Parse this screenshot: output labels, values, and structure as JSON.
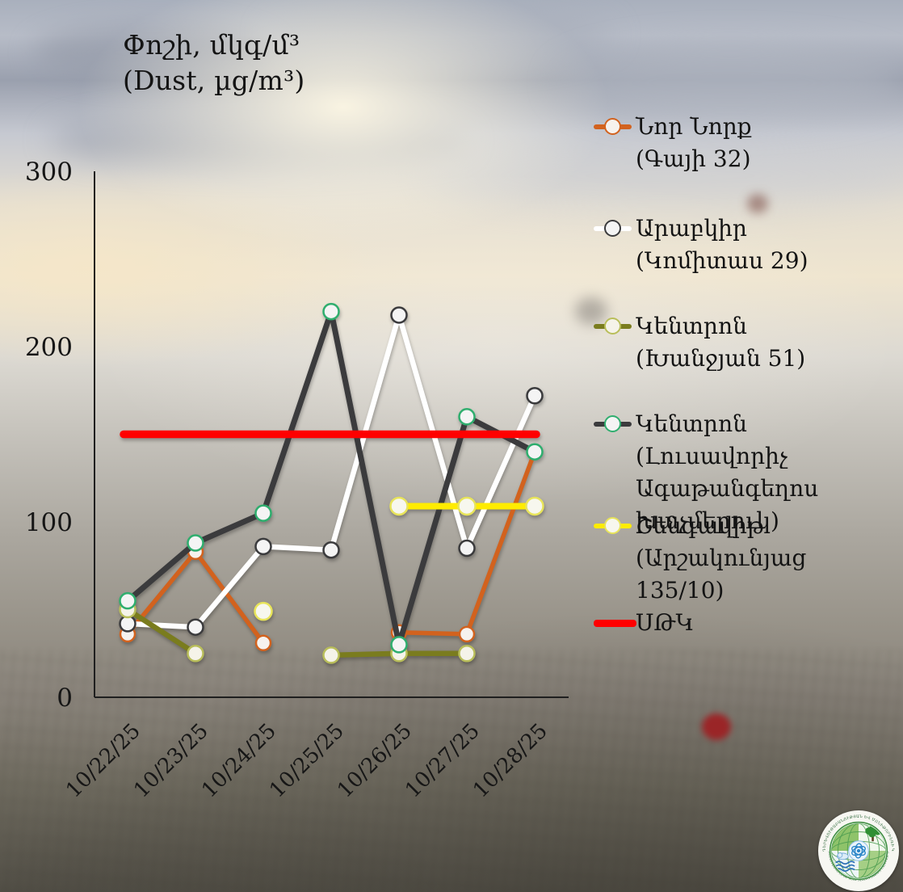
{
  "chart_data": {
    "type": "line",
    "title": "Փոշի, մկգ/մ³",
    "subtitle": "(Dust, µg/m³)",
    "xlabel": "",
    "ylabel": "",
    "x_labels": [
      "10/22/25",
      "10/23/25",
      "10/24/25",
      "10/25/25",
      "10/26/25",
      "10/27/25",
      "10/28/25"
    ],
    "y_ticks": [
      0,
      100,
      200,
      300
    ],
    "ylim": [
      0,
      300
    ],
    "grid": false,
    "legend_position": "right",
    "series": [
      {
        "name": "Նոր Նորք (Գայի 32)",
        "legend_lines": [
          "Նոր Նորք",
          "(Գայի 32)"
        ],
        "color": "#d2621e",
        "marker_ring": "#d2621e",
        "marker_fill": "#f6f2ee",
        "values": [
          36,
          83,
          31,
          null,
          37,
          36,
          140
        ]
      },
      {
        "name": "Արաբկիր (Կոմիտաս 29)",
        "legend_lines": [
          "Արաբկիր",
          "(Կոմիտաս 29)"
        ],
        "color": "#ffffff",
        "marker_ring": "#3b3b3d",
        "marker_fill": "#f4f4f4",
        "values": [
          42,
          40,
          86,
          84,
          218,
          85,
          172
        ]
      },
      {
        "name": "Կենտրոն (Խանջյան 51)",
        "legend_lines": [
          "Կենտրոն",
          "(Խանջյան 51)"
        ],
        "color": "#7a7c1e",
        "marker_ring": "#b9be5a",
        "marker_fill": "#f5f3e9",
        "values": [
          50,
          25,
          null,
          24,
          25,
          25,
          null
        ]
      },
      {
        "name": "Կենտրոն (Լուսավորիչ Ագաթանգեղոս խաչմերուկ)",
        "legend_lines": [
          "Կենտրոն (Լուսավորիչ",
          "Ագաթանգեղոս",
          "խաչմերուկ)"
        ],
        "color": "#3b3b3d",
        "marker_ring": "#2fae6e",
        "marker_fill": "#f4f4f4",
        "values": [
          55,
          88,
          105,
          220,
          30,
          160,
          140
        ]
      },
      {
        "name": "Շենգավիթ (Արշակունյաց 135/10)",
        "legend_lines": [
          "Շենգավիթ",
          "(Արշակունյաց 135/10)"
        ],
        "color": "#ffec00",
        "marker_ring": "#e8e45a",
        "marker_fill": "#f7f7ee",
        "values": [
          null,
          null,
          49,
          null,
          109,
          109,
          109
        ]
      },
      {
        "name": "ՍԹԿ",
        "legend_lines": [
          "ՍԹԿ"
        ],
        "color": "#ff0000",
        "type": "threshold",
        "value": 150
      }
    ]
  },
  "logo": {
    "ring_text_top": "ՀԻԴՐՈՕԴԵՐԵՎՈՒԹԱԲԱՆՈՒԹՅԱՆ ԵՎ ՄՈՆԻԹՈՐԻՆԳԻ ԿԵՆՏՐՈՆ",
    "ring_text_bottom": "HYDROMETEOROLOGY AND MONITORING CENTER SNCO"
  }
}
